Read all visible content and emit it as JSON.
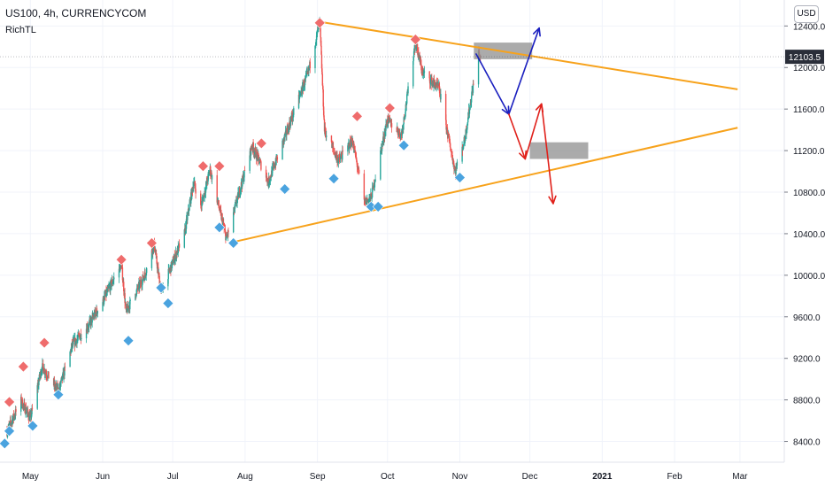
{
  "header": {
    "symbol_line": "US100, 4h, CURRENCYCOM",
    "indicator": "RichTL",
    "currency": "USD"
  },
  "colors": {
    "up": "#26a69a",
    "down": "#ef5350",
    "trendline": "#f7a21b",
    "arrow_blue": "#1a1fbf",
    "arrow_red": "#e0201a",
    "zone": "#8f8f8f",
    "marker_high": "#ef6c6c",
    "marker_low": "#4aa3df",
    "price_tag": "#2a2e39"
  },
  "chart_data": {
    "type": "candlestick",
    "ylim": [
      8200,
      12650
    ],
    "y_ticks": [
      8400,
      8800,
      9200,
      9600,
      10000,
      10400,
      10800,
      11200,
      11600,
      12000,
      12400
    ],
    "y_tick_labels": [
      "8400.0",
      "8800.0",
      "9200.0",
      "9600.0",
      "10000.0",
      "10400.0",
      "10800.0",
      "11200.0",
      "11600.0",
      "12000.0",
      "12400.0"
    ],
    "x_ticks": [
      "May",
      "Jun",
      "Jul",
      "Aug",
      "Sep",
      "Oct",
      "Nov",
      "Dec",
      "2021",
      "Feb",
      "Mar"
    ],
    "last_price": "12103.5",
    "path": [
      [
        "2020-04-21",
        8500
      ],
      [
        "2020-04-27",
        8790
      ],
      [
        "2020-05-01",
        8620
      ],
      [
        "2020-05-06",
        9120
      ],
      [
        "2020-05-13",
        8880
      ],
      [
        "2020-05-19",
        9330
      ],
      [
        "2020-05-26",
        9520
      ],
      [
        "2020-06-01",
        9750
      ],
      [
        "2020-06-09",
        10110
      ],
      [
        "2020-06-11",
        9650
      ],
      [
        "2020-06-19",
        10000
      ],
      [
        "2020-06-23",
        10300
      ],
      [
        "2020-06-26",
        9840
      ],
      [
        "2020-07-06",
        10400
      ],
      [
        "2020-07-10",
        10900
      ],
      [
        "2020-07-13",
        10650
      ],
      [
        "2020-07-17",
        11020
      ],
      [
        "2020-07-24",
        10350
      ],
      [
        "2020-08-04",
        11250
      ],
      [
        "2020-08-11",
        10900
      ],
      [
        "2020-08-20",
        11450
      ],
      [
        "2020-08-28",
        11950
      ],
      [
        "2020-09-02",
        12440
      ],
      [
        "2020-09-04",
        11400
      ],
      [
        "2020-09-10",
        11100
      ],
      [
        "2020-09-16",
        11300
      ],
      [
        "2020-09-21",
        10700
      ],
      [
        "2020-09-24",
        10750
      ],
      [
        "2020-10-01",
        11500
      ],
      [
        "2020-10-07",
        11350
      ],
      [
        "2020-10-13",
        12250
      ],
      [
        "2020-10-16",
        11950
      ],
      [
        "2020-10-23",
        11800
      ],
      [
        "2020-10-30",
        11000
      ],
      [
        "2020-11-03",
        11300
      ],
      [
        "2020-11-09",
        12150
      ],
      [
        "2020-11-10",
        12050
      ]
    ],
    "markers_high": [
      [
        "2020-04-22",
        8780
      ],
      [
        "2020-04-28",
        9120
      ],
      [
        "2020-05-07",
        9350
      ],
      [
        "2020-06-09",
        10150
      ],
      [
        "2020-06-22",
        10310
      ],
      [
        "2020-07-14",
        11050
      ],
      [
        "2020-07-21",
        11050
      ],
      [
        "2020-08-08",
        11270
      ],
      [
        "2020-09-02",
        12430
      ],
      [
        "2020-09-18",
        11530
      ],
      [
        "2020-10-02",
        11610
      ],
      [
        "2020-10-13",
        12270
      ]
    ],
    "markers_low": [
      [
        "2020-04-20",
        8380
      ],
      [
        "2020-04-22",
        8500
      ],
      [
        "2020-05-02",
        8550
      ],
      [
        "2020-05-13",
        8850
      ],
      [
        "2020-06-12",
        9370
      ],
      [
        "2020-06-26",
        9880
      ],
      [
        "2020-06-29",
        9730
      ],
      [
        "2020-07-21",
        10460
      ],
      [
        "2020-07-27",
        10310
      ],
      [
        "2020-08-18",
        10830
      ],
      [
        "2020-09-08",
        10930
      ],
      [
        "2020-09-24",
        10660
      ],
      [
        "2020-09-27",
        10660
      ],
      [
        "2020-10-08",
        11250
      ],
      [
        "2020-11-01",
        10940
      ]
    ],
    "trendlines": [
      {
        "start": [
          "2020-09-02",
          12440
        ],
        "end": [
          "2021-02-28",
          11790
        ]
      },
      {
        "start": [
          "2020-07-27",
          10320
        ],
        "end": [
          "2021-02-28",
          11420
        ]
      }
    ],
    "zones": [
      {
        "x": [
          "2020-11-07",
          "2020-12-02"
        ],
        "y": [
          12080,
          12240
        ]
      },
      {
        "x": [
          "2020-12-01",
          "2020-12-26"
        ],
        "y": [
          11120,
          11280
        ]
      }
    ],
    "arrows_blue": [
      [
        "2020-11-08",
        12130
      ],
      [
        "2020-11-22",
        11550
      ],
      [
        "2020-12-05",
        12380
      ]
    ],
    "arrows_red": [
      [
        "2020-11-22",
        11550
      ],
      [
        "2020-11-29",
        11120
      ],
      [
        "2020-12-06",
        11650
      ],
      [
        "2020-12-11",
        10690
      ]
    ]
  }
}
